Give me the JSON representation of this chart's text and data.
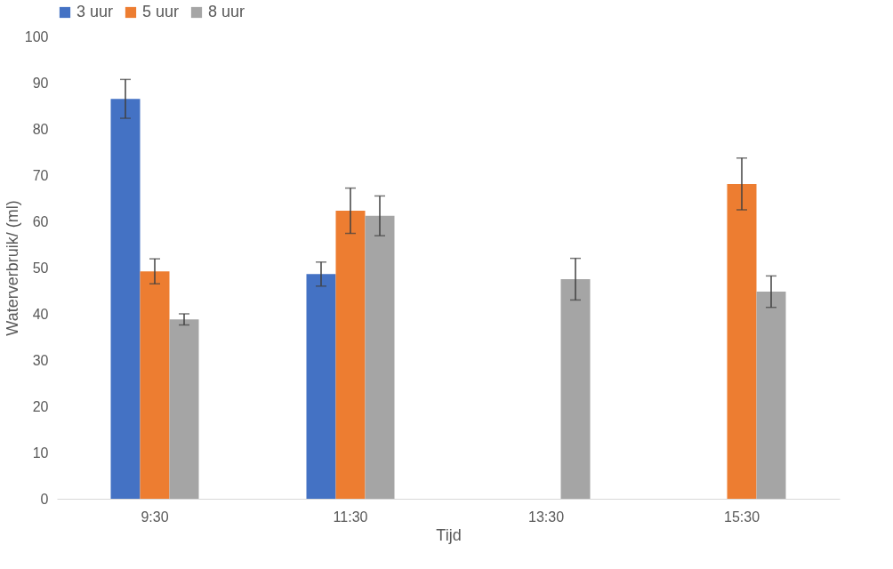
{
  "chart_data": {
    "type": "bar",
    "xlabel": "Tijd",
    "ylabel": "Waterverbruik/ (ml)",
    "categories": [
      "9:30",
      "11:30",
      "13:30",
      "15:30"
    ],
    "series": [
      {
        "name": "3 uur",
        "color": "#4472c4",
        "values": [
          86.5,
          48.6,
          null,
          null
        ],
        "errors": [
          4.2,
          2.6,
          null,
          null
        ]
      },
      {
        "name": "5 uur",
        "color": "#ed7d31",
        "values": [
          49.2,
          62.3,
          null,
          68.1
        ],
        "errors": [
          2.7,
          4.9,
          null,
          5.6
        ]
      },
      {
        "name": "8 uur",
        "color": "#a5a5a5",
        "values": [
          38.8,
          61.2,
          47.5,
          44.8
        ],
        "errors": [
          1.2,
          4.3,
          4.5,
          3.4
        ]
      }
    ],
    "ylim": [
      0,
      100
    ],
    "yticks": [
      0,
      10,
      20,
      30,
      40,
      50,
      60,
      70,
      80,
      90,
      100
    ],
    "grid": false,
    "legend": "top"
  }
}
